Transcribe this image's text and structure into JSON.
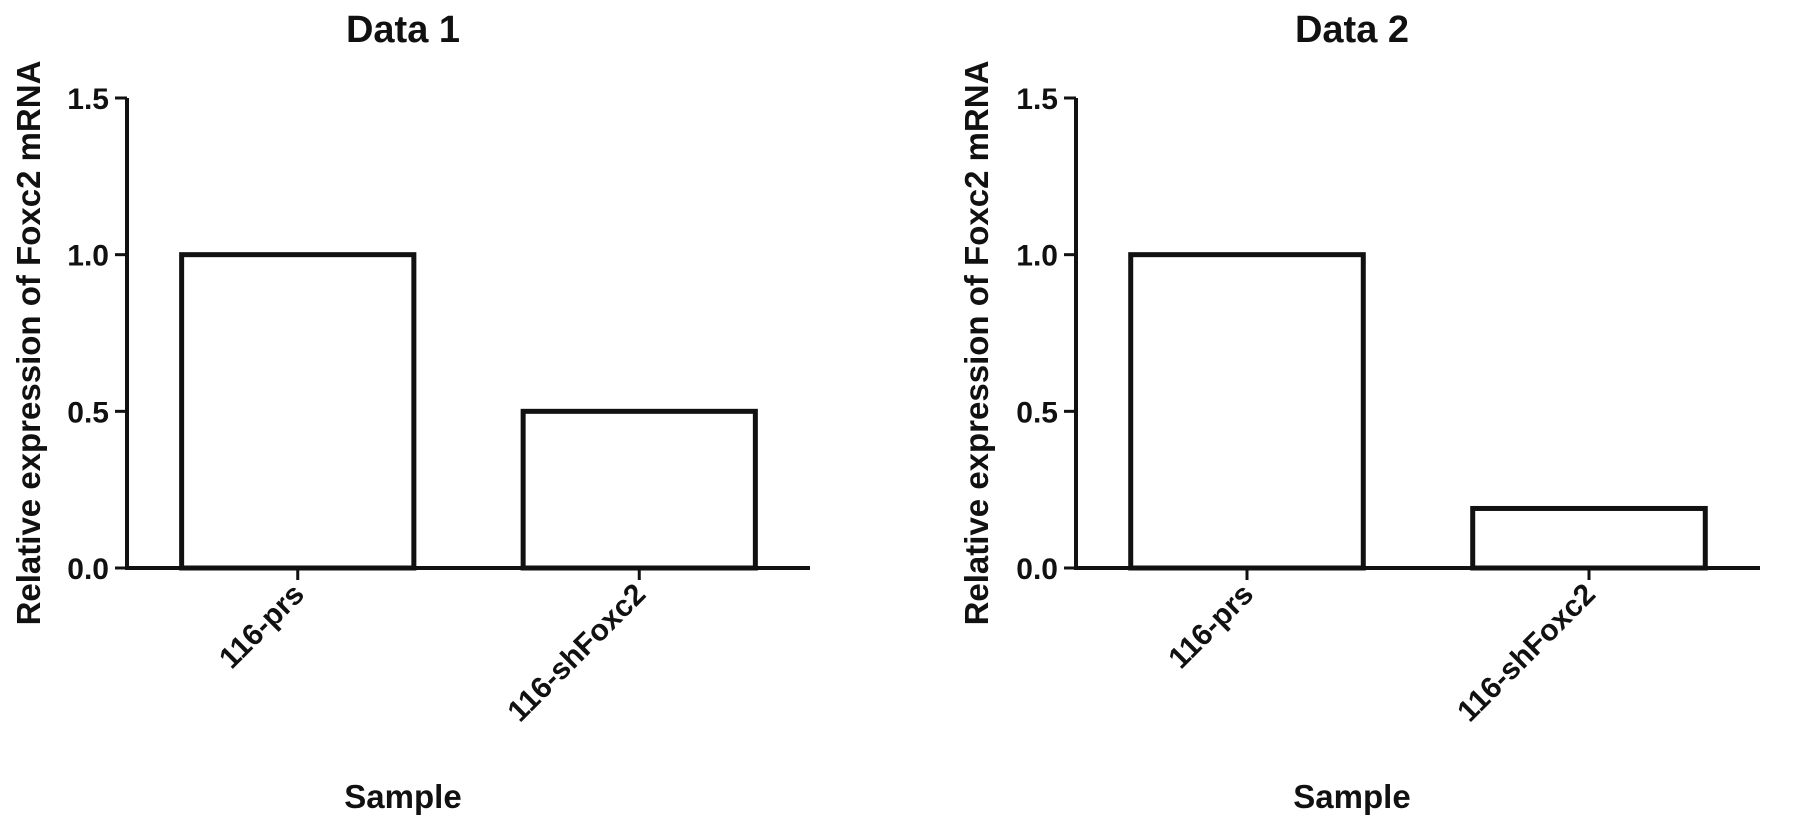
{
  "chart_data": [
    {
      "type": "bar",
      "title": "Data 1",
      "xlabel": "Sample",
      "ylabel": "Relative expression of Foxc2 mRNA",
      "categories": [
        "116-prs",
        "116-shFoxc2"
      ],
      "values": [
        1.0,
        0.5
      ],
      "ylim": [
        0,
        1.5
      ],
      "yticks": [
        "0.0",
        "0.5",
        "1.0",
        "1.5"
      ],
      "ytick_values": [
        0,
        0.5,
        1.0,
        1.5
      ],
      "grid": false,
      "legend": "none",
      "bar_fill": "#ffffff",
      "bar_stroke": "#111111"
    },
    {
      "type": "bar",
      "title": "Data 2",
      "xlabel": "Sample",
      "ylabel": "Relative expression of Foxc2 mRNA",
      "categories": [
        "116-prs",
        "116-shFoxc2"
      ],
      "values": [
        1.0,
        0.19
      ],
      "ylim": [
        0,
        1.5
      ],
      "yticks": [
        "0.0",
        "0.5",
        "1.0",
        "1.5"
      ],
      "ytick_values": [
        0,
        0.5,
        1.0,
        1.5
      ],
      "grid": false,
      "legend": "none",
      "bar_fill": "#ffffff",
      "bar_stroke": "#111111"
    }
  ]
}
